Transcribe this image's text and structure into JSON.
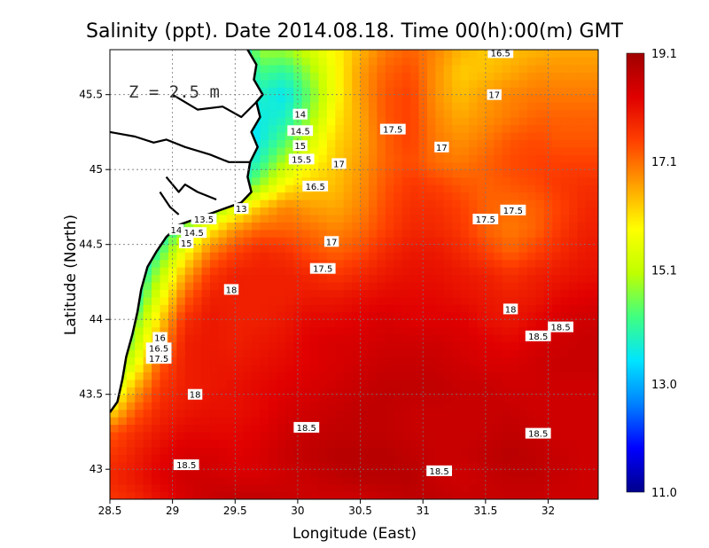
{
  "chart_data": {
    "type": "heatmap",
    "title": "Salinity (ppt). Date 2014.08.18. Time 00(h):00(m) GMT",
    "xlabel": "Longitude (East)",
    "ylabel": "Latitude (North)",
    "xlim": [
      28.5,
      32.4
    ],
    "ylim": [
      42.8,
      45.8
    ],
    "x_ticks": [
      28.5,
      29,
      29.5,
      30,
      30.5,
      31,
      31.5,
      32
    ],
    "x_tick_labels": [
      "28.5",
      "29",
      "29.5",
      "30",
      "30.5",
      "31",
      "31.5",
      "32"
    ],
    "y_ticks": [
      43,
      43.5,
      44,
      44.5,
      45,
      45.5
    ],
    "y_tick_labels": [
      "43",
      "43.5",
      "44",
      "44.5",
      "45",
      "45.5"
    ],
    "grid": true,
    "annotation": "Z = 2.5 m",
    "colorbar": {
      "min": 11.0,
      "max": 19.1,
      "ticks": [
        19.1,
        17.1,
        15.1,
        13.0,
        11.0
      ],
      "tick_labels": [
        "19.1",
        "17.1",
        "15.1",
        "13.0",
        "11.0"
      ],
      "colors": [
        "#00008b",
        "#0000ff",
        "#0080ff",
        "#00e5ff",
        "#40ff80",
        "#c0ff00",
        "#ffff00",
        "#ffa000",
        "#ff4000",
        "#e00000",
        "#a00000"
      ]
    },
    "contour_labels": [
      {
        "text": "16.5",
        "lon": 31.62,
        "lat": 45.78
      },
      {
        "text": "17",
        "lon": 31.57,
        "lat": 45.5
      },
      {
        "text": "17.5",
        "lon": 30.76,
        "lat": 45.27
      },
      {
        "text": "17",
        "lon": 31.15,
        "lat": 45.15
      },
      {
        "text": "14",
        "lon": 30.02,
        "lat": 45.37
      },
      {
        "text": "14.5",
        "lon": 30.02,
        "lat": 45.26
      },
      {
        "text": "15",
        "lon": 30.02,
        "lat": 45.16
      },
      {
        "text": "15.5",
        "lon": 30.03,
        "lat": 45.07
      },
      {
        "text": "17",
        "lon": 30.33,
        "lat": 45.04
      },
      {
        "text": "16.5",
        "lon": 30.14,
        "lat": 44.89
      },
      {
        "text": "13",
        "lon": 29.55,
        "lat": 44.74
      },
      {
        "text": "13.5",
        "lon": 29.25,
        "lat": 44.67
      },
      {
        "text": "14",
        "lon": 29.03,
        "lat": 44.6
      },
      {
        "text": "14.5",
        "lon": 29.17,
        "lat": 44.58
      },
      {
        "text": "15",
        "lon": 29.11,
        "lat": 44.51
      },
      {
        "text": "17.5",
        "lon": 31.72,
        "lat": 44.73
      },
      {
        "text": "17.5",
        "lon": 31.5,
        "lat": 44.67
      },
      {
        "text": "17",
        "lon": 30.27,
        "lat": 44.52
      },
      {
        "text": "17.5",
        "lon": 30.2,
        "lat": 44.34
      },
      {
        "text": "18",
        "lon": 29.47,
        "lat": 44.2
      },
      {
        "text": "18",
        "lon": 31.7,
        "lat": 44.07
      },
      {
        "text": "18.5",
        "lon": 32.1,
        "lat": 43.95
      },
      {
        "text": "18.5",
        "lon": 31.92,
        "lat": 43.89
      },
      {
        "text": "16",
        "lon": 28.9,
        "lat": 43.88
      },
      {
        "text": "16.5",
        "lon": 28.89,
        "lat": 43.81
      },
      {
        "text": "17.5",
        "lon": 28.89,
        "lat": 43.74
      },
      {
        "text": "18",
        "lon": 29.18,
        "lat": 43.5
      },
      {
        "text": "18.5",
        "lon": 30.07,
        "lat": 43.28
      },
      {
        "text": "18.5",
        "lon": 31.92,
        "lat": 43.24
      },
      {
        "text": "18.5",
        "lon": 29.11,
        "lat": 43.03
      },
      {
        "text": "18.5",
        "lon": 31.13,
        "lat": 42.99
      }
    ],
    "coastline": [
      [
        29.6,
        45.8
      ],
      [
        29.67,
        45.7
      ],
      [
        29.65,
        45.6
      ],
      [
        29.72,
        45.5
      ],
      [
        29.67,
        45.45
      ],
      [
        29.7,
        45.35
      ],
      [
        29.63,
        45.25
      ],
      [
        29.68,
        45.15
      ],
      [
        29.62,
        45.05
      ],
      [
        29.6,
        44.95
      ],
      [
        29.63,
        44.85
      ],
      [
        29.55,
        44.78
      ],
      [
        29.45,
        44.75
      ],
      [
        29.35,
        44.72
      ],
      [
        29.25,
        44.69
      ],
      [
        29.15,
        44.66
      ],
      [
        29.05,
        44.63
      ],
      [
        28.95,
        44.55
      ],
      [
        28.87,
        44.45
      ],
      [
        28.8,
        44.35
      ],
      [
        28.75,
        44.2
      ],
      [
        28.72,
        44.05
      ],
      [
        28.68,
        43.9
      ],
      [
        28.63,
        43.75
      ],
      [
        28.6,
        43.6
      ],
      [
        28.56,
        43.45
      ],
      [
        28.5,
        43.38
      ]
    ],
    "land_regions": [
      [
        [
          28.5,
          45.8
        ],
        [
          29.6,
          45.8
        ],
        [
          29.67,
          45.7
        ],
        [
          29.65,
          45.6
        ],
        [
          29.72,
          45.5
        ],
        [
          29.67,
          45.45
        ],
        [
          29.7,
          45.35
        ],
        [
          29.63,
          45.25
        ],
        [
          29.68,
          45.15
        ],
        [
          29.62,
          45.05
        ],
        [
          29.6,
          44.95
        ],
        [
          29.63,
          44.85
        ],
        [
          29.55,
          44.78
        ],
        [
          29.45,
          44.75
        ],
        [
          29.35,
          44.72
        ],
        [
          29.25,
          44.69
        ],
        [
          29.15,
          44.66
        ],
        [
          29.05,
          44.63
        ],
        [
          28.95,
          44.55
        ],
        [
          28.87,
          44.45
        ],
        [
          28.8,
          44.35
        ],
        [
          28.75,
          44.2
        ],
        [
          28.72,
          44.05
        ],
        [
          28.68,
          43.9
        ],
        [
          28.63,
          43.75
        ],
        [
          28.6,
          43.6
        ],
        [
          28.56,
          43.45
        ],
        [
          28.5,
          43.38
        ]
      ]
    ],
    "coastline_branches": [
      [
        [
          28.5,
          45.25
        ],
        [
          28.7,
          45.22
        ],
        [
          28.85,
          45.18
        ],
        [
          28.95,
          45.2
        ],
        [
          29.1,
          45.15
        ],
        [
          29.3,
          45.1
        ],
        [
          29.45,
          45.05
        ],
        [
          29.62,
          45.05
        ]
      ],
      [
        [
          29.0,
          45.5
        ],
        [
          29.2,
          45.4
        ],
        [
          29.4,
          45.42
        ],
        [
          29.55,
          45.35
        ],
        [
          29.67,
          45.45
        ]
      ],
      [
        [
          28.95,
          44.95
        ],
        [
          29.05,
          44.85
        ],
        [
          29.1,
          44.9
        ],
        [
          29.2,
          44.85
        ],
        [
          29.35,
          44.8
        ]
      ],
      [
        [
          28.9,
          44.85
        ],
        [
          28.98,
          44.75
        ],
        [
          29.05,
          44.7
        ]
      ]
    ],
    "salinity_field": {
      "lon": [
        28.5,
        28.7,
        28.9,
        29.1,
        29.3,
        29.5,
        29.7,
        29.9,
        30.1,
        30.3,
        30.5,
        30.7,
        30.9,
        31.1,
        31.3,
        31.5,
        31.7,
        31.9,
        32.1,
        32.3
      ],
      "lat": [
        42.8,
        42.95,
        43.1,
        43.25,
        43.4,
        43.55,
        43.7,
        43.85,
        44.0,
        44.15,
        44.3,
        44.45,
        44.6,
        44.75,
        44.9,
        45.05,
        45.2,
        45.35,
        45.5,
        45.65,
        45.8
      ],
      "values": [
        [
          17.6,
          17.8,
          18.1,
          18.4,
          18.6,
          18.7,
          18.7,
          18.6,
          18.5,
          18.5,
          18.5,
          18.6,
          18.7,
          18.7,
          18.6,
          18.6,
          18.6,
          18.6,
          18.5,
          18.5
        ],
        [
          17.8,
          18.0,
          18.3,
          18.5,
          18.5,
          18.4,
          18.4,
          18.5,
          18.6,
          18.7,
          18.8,
          18.8,
          18.8,
          18.6,
          18.5,
          18.6,
          18.7,
          18.7,
          18.6,
          18.5
        ],
        [
          17.6,
          17.9,
          18.2,
          18.4,
          18.4,
          18.3,
          18.4,
          18.6,
          18.7,
          18.8,
          18.8,
          18.8,
          18.7,
          18.6,
          18.6,
          18.7,
          18.8,
          18.7,
          18.6,
          18.5
        ],
        [
          17.3,
          17.7,
          18.0,
          18.2,
          18.2,
          18.2,
          18.3,
          18.5,
          18.6,
          18.7,
          18.7,
          18.7,
          18.6,
          18.6,
          18.6,
          18.6,
          18.7,
          18.6,
          18.5,
          18.5
        ],
        [
          16.0,
          17.2,
          17.8,
          18.0,
          18.1,
          18.1,
          18.2,
          18.4,
          18.5,
          18.6,
          18.7,
          18.7,
          18.6,
          18.6,
          18.6,
          18.6,
          18.6,
          18.5,
          18.5,
          18.5
        ],
        [
          15.0,
          16.5,
          17.6,
          17.9,
          18.0,
          18.1,
          18.2,
          18.3,
          18.4,
          18.5,
          18.6,
          18.7,
          18.7,
          18.7,
          18.6,
          18.6,
          18.5,
          18.5,
          18.5,
          18.5
        ],
        [
          14.0,
          15.6,
          17.3,
          17.9,
          18.0,
          18.0,
          18.1,
          18.2,
          18.3,
          18.4,
          18.5,
          18.6,
          18.6,
          18.6,
          18.5,
          18.4,
          18.4,
          18.5,
          18.6,
          18.6
        ],
        [
          13.6,
          15.0,
          16.7,
          17.9,
          18.0,
          17.9,
          18.0,
          18.1,
          18.3,
          18.4,
          18.4,
          18.5,
          18.5,
          18.5,
          18.4,
          18.3,
          18.2,
          18.4,
          18.5,
          18.6
        ],
        [
          13.4,
          14.5,
          16.2,
          17.7,
          18.0,
          17.9,
          17.9,
          18.0,
          18.2,
          18.2,
          18.3,
          18.4,
          18.3,
          18.3,
          18.3,
          18.1,
          18.0,
          18.2,
          18.4,
          18.5
        ],
        [
          13.2,
          13.9,
          15.6,
          17.2,
          17.9,
          17.9,
          17.9,
          17.9,
          18.0,
          18.0,
          18.1,
          18.2,
          18.2,
          18.2,
          18.1,
          18.0,
          17.9,
          18.0,
          18.2,
          18.3
        ],
        [
          13.0,
          13.5,
          15.0,
          16.6,
          17.6,
          17.9,
          17.9,
          17.9,
          17.8,
          17.6,
          17.8,
          18.0,
          18.1,
          18.1,
          18.0,
          17.9,
          17.7,
          17.9,
          18.0,
          18.1
        ],
        [
          13.0,
          13.2,
          14.3,
          15.8,
          17.0,
          17.5,
          17.8,
          17.7,
          17.4,
          17.2,
          17.4,
          17.8,
          18.0,
          18.0,
          17.8,
          17.5,
          17.2,
          17.5,
          17.8,
          18.0
        ],
        [
          13.0,
          13.0,
          13.6,
          14.8,
          16.0,
          16.8,
          17.2,
          17.2,
          17.1,
          16.9,
          17.1,
          17.5,
          17.8,
          17.8,
          17.6,
          17.2,
          17.0,
          17.2,
          17.6,
          17.9
        ],
        [
          13.0,
          13.0,
          13.0,
          13.6,
          14.5,
          15.5,
          16.4,
          16.9,
          16.7,
          16.6,
          16.9,
          17.4,
          17.7,
          17.7,
          17.5,
          17.2,
          17.1,
          17.2,
          17.5,
          17.8
        ],
        [
          13.0,
          13.0,
          13.0,
          13.0,
          13.4,
          13.8,
          14.8,
          15.9,
          16.3,
          16.4,
          16.8,
          17.3,
          17.6,
          17.5,
          17.3,
          17.2,
          17.3,
          17.4,
          17.6,
          17.7
        ],
        [
          13.0,
          13.0,
          13.0,
          13.0,
          13.0,
          13.2,
          14.0,
          15.0,
          15.8,
          16.3,
          16.7,
          17.2,
          17.4,
          17.1,
          17.0,
          17.2,
          17.4,
          17.5,
          17.5,
          17.5
        ],
        [
          13.0,
          13.0,
          13.0,
          13.0,
          13.0,
          13.0,
          13.6,
          14.3,
          15.3,
          16.2,
          16.6,
          17.2,
          17.5,
          17.0,
          16.8,
          17.0,
          17.3,
          17.4,
          17.3,
          17.3
        ],
        [
          13.0,
          13.0,
          13.0,
          13.0,
          13.0,
          13.0,
          13.6,
          13.8,
          14.8,
          16.0,
          16.6,
          17.3,
          17.5,
          16.9,
          16.6,
          16.8,
          17.0,
          17.2,
          17.2,
          17.2
        ],
        [
          13.0,
          13.0,
          13.0,
          13.0,
          13.0,
          13.0,
          13.8,
          13.5,
          14.5,
          15.8,
          16.7,
          17.3,
          17.5,
          16.8,
          16.4,
          16.7,
          16.9,
          17.0,
          17.0,
          17.0
        ],
        [
          13.0,
          13.0,
          13.0,
          13.0,
          13.0,
          13.0,
          14.2,
          14.0,
          14.8,
          15.8,
          16.7,
          17.2,
          17.4,
          16.8,
          16.3,
          16.4,
          16.6,
          16.8,
          16.8,
          16.8
        ],
        [
          13.0,
          13.0,
          13.0,
          13.0,
          13.0,
          13.0,
          14.8,
          14.8,
          15.3,
          15.9,
          16.5,
          17.0,
          17.2,
          16.9,
          16.5,
          16.3,
          16.4,
          16.5,
          16.6,
          16.6
        ]
      ]
    }
  }
}
